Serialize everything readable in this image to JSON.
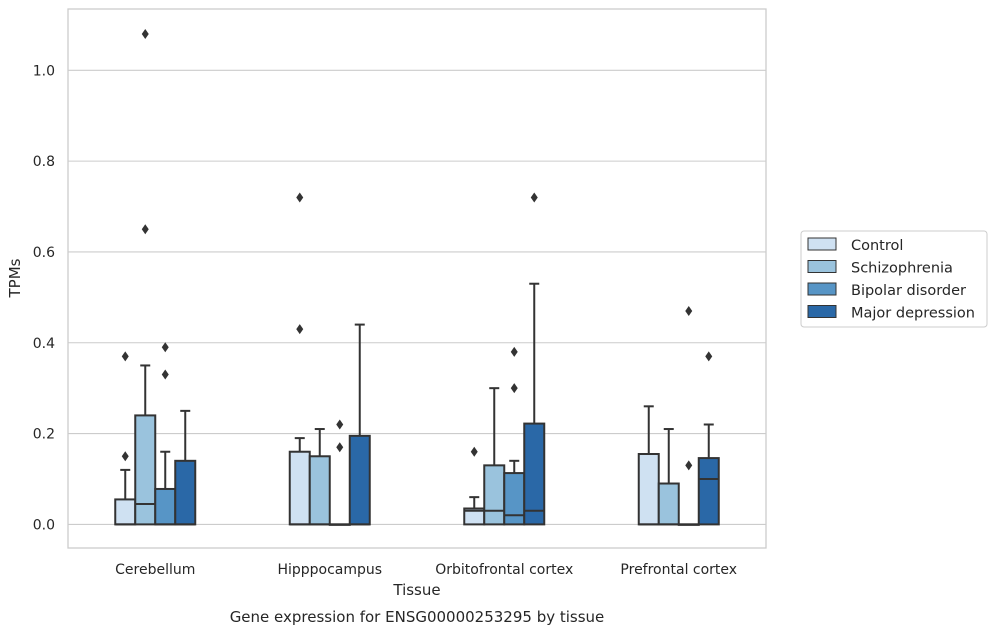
{
  "chart_data": {
    "type": "boxplot",
    "xlabel": "Tissue",
    "ylabel": "TPMs",
    "caption": "Gene expression for ENSG00000253295 by tissue",
    "ylim": [
      -0.052,
      1.135
    ],
    "yticks": [
      0.0,
      0.2,
      0.4,
      0.6,
      0.8,
      1.0
    ],
    "ytick_labels": [
      "0.0",
      "0.2",
      "0.4",
      "0.6",
      "0.8",
      "1.0"
    ],
    "grid": "horizontal",
    "legend_position": "right",
    "categories": [
      "Cerebellum",
      "Hipppocampus",
      "Orbitofrontal cortex",
      "Prefrontal cortex"
    ],
    "series": [
      {
        "name": "Control",
        "color": "#cfe1f2",
        "boxes": [
          {
            "q1": 0.0,
            "median": 0.0,
            "q3": 0.055,
            "whisker_low": 0.0,
            "whisker_high": 0.12,
            "outliers": [
              0.15,
              0.37
            ]
          },
          {
            "q1": 0.0,
            "median": 0.0,
            "q3": 0.16,
            "whisker_low": 0.0,
            "whisker_high": 0.19,
            "outliers": [
              0.43,
              0.72
            ]
          },
          {
            "q1": 0.0,
            "median": 0.03,
            "q3": 0.035,
            "whisker_low": 0.0,
            "whisker_high": 0.06,
            "outliers": [
              0.16
            ]
          },
          {
            "q1": 0.0,
            "median": 0.0,
            "q3": 0.155,
            "whisker_low": 0.0,
            "whisker_high": 0.26,
            "outliers": []
          }
        ]
      },
      {
        "name": "Schizophrenia",
        "color": "#9ac3dd",
        "boxes": [
          {
            "q1": 0.0,
            "median": 0.045,
            "q3": 0.24,
            "whisker_low": 0.0,
            "whisker_high": 0.35,
            "outliers": [
              0.65,
              1.08
            ]
          },
          {
            "q1": 0.0,
            "median": 0.0,
            "q3": 0.15,
            "whisker_low": 0.0,
            "whisker_high": 0.21,
            "outliers": []
          },
          {
            "q1": 0.0,
            "median": 0.03,
            "q3": 0.13,
            "whisker_low": 0.0,
            "whisker_high": 0.3,
            "outliers": []
          },
          {
            "q1": 0.0,
            "median": 0.0,
            "q3": 0.09,
            "whisker_low": 0.0,
            "whisker_high": 0.21,
            "outliers": []
          }
        ]
      },
      {
        "name": "Bipolar disorder",
        "color": "#5795c6",
        "boxes": [
          {
            "q1": 0.0,
            "median": 0.0,
            "q3": 0.078,
            "whisker_low": 0.0,
            "whisker_high": 0.16,
            "outliers": [
              0.33,
              0.39
            ]
          },
          {
            "q1": 0.0,
            "median": 0.0,
            "q3": 0.0,
            "whisker_low": 0.0,
            "whisker_high": 0.0,
            "outliers": [
              0.17,
              0.22
            ]
          },
          {
            "q1": 0.0,
            "median": 0.02,
            "q3": 0.113,
            "whisker_low": 0.0,
            "whisker_high": 0.14,
            "outliers": [
              0.3,
              0.38
            ]
          },
          {
            "q1": 0.0,
            "median": 0.0,
            "q3": 0.0,
            "whisker_low": 0.0,
            "whisker_high": 0.0,
            "outliers": [
              0.13,
              0.47
            ]
          }
        ]
      },
      {
        "name": "Major depression",
        "color": "#2a68a7",
        "boxes": [
          {
            "q1": 0.0,
            "median": 0.0,
            "q3": 0.14,
            "whisker_low": 0.0,
            "whisker_high": 0.25,
            "outliers": []
          },
          {
            "q1": 0.0,
            "median": 0.0,
            "q3": 0.195,
            "whisker_low": 0.0,
            "whisker_high": 0.44,
            "outliers": []
          },
          {
            "q1": 0.0,
            "median": 0.03,
            "q3": 0.222,
            "whisker_low": 0.0,
            "whisker_high": 0.53,
            "outliers": [
              0.72
            ]
          },
          {
            "q1": 0.0,
            "median": 0.1,
            "q3": 0.146,
            "whisker_low": 0.0,
            "whisker_high": 0.22,
            "outliers": [
              0.37
            ]
          }
        ]
      }
    ]
  }
}
